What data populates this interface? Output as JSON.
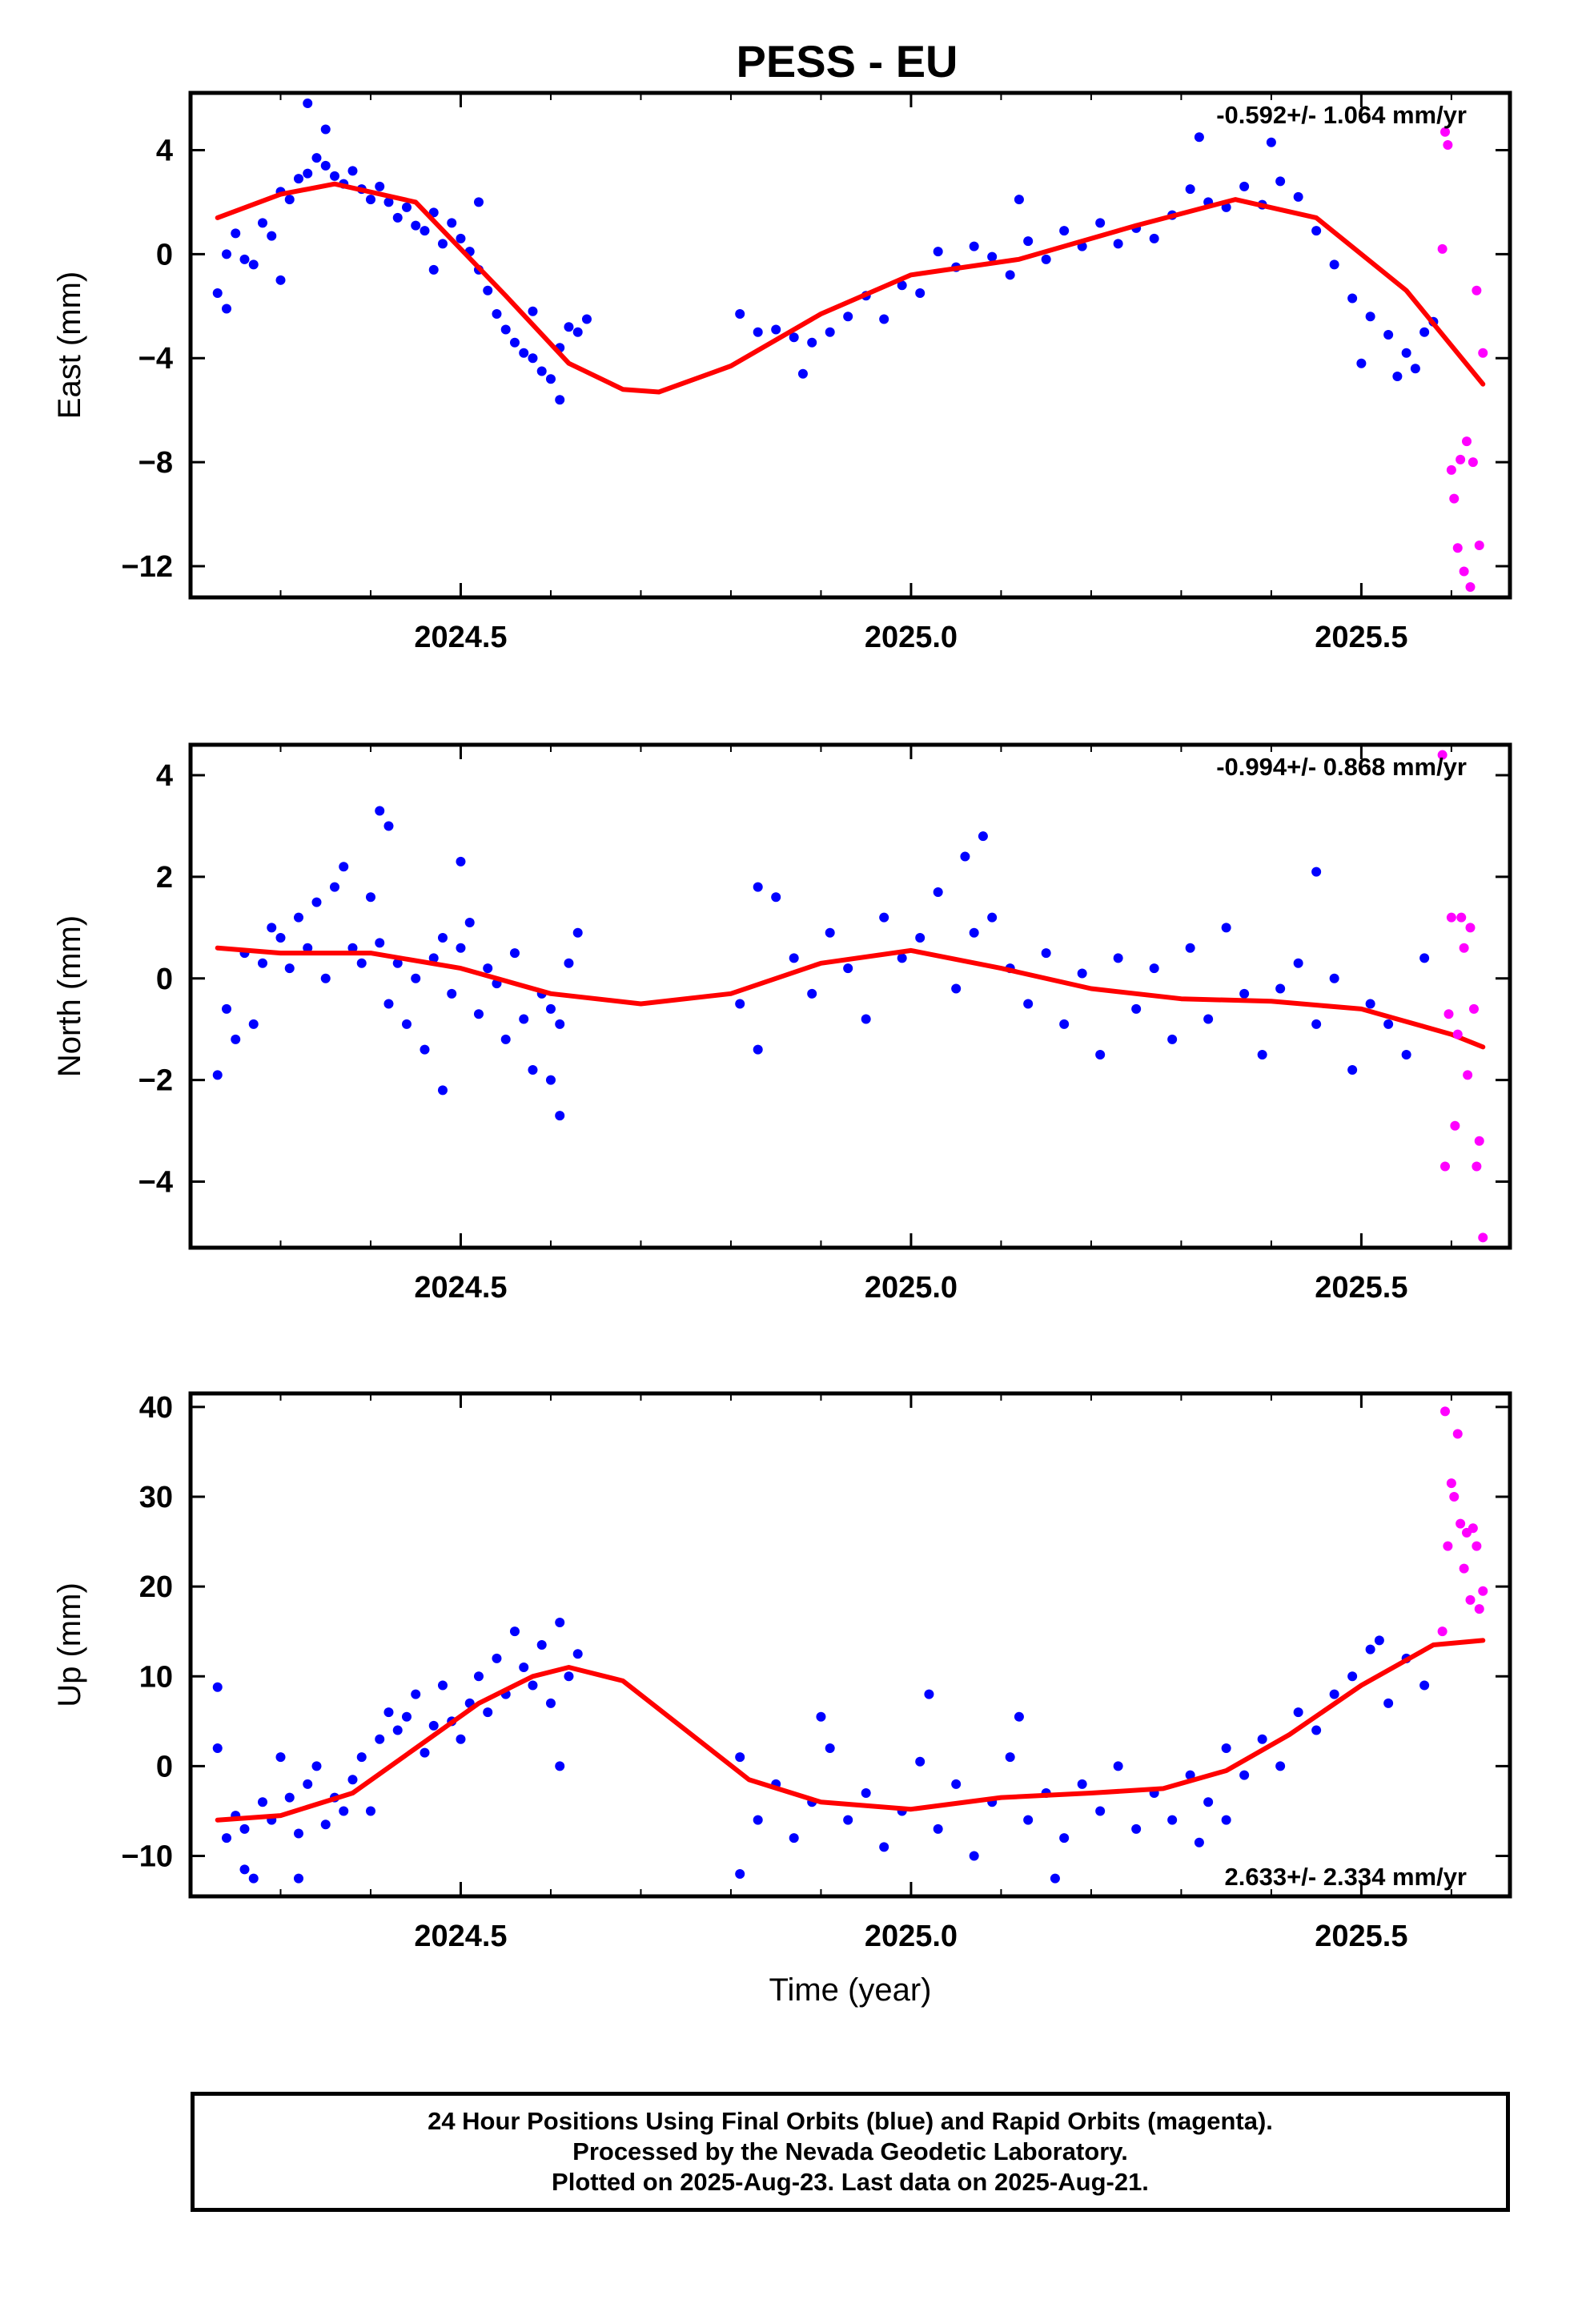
{
  "title": "PESS - EU",
  "colors": {
    "final": "#0000ff",
    "rapid": "#ff00ff",
    "fit": "#ff0000"
  },
  "footer": {
    "line1": "24 Hour Positions Using Final Orbits (blue) and Rapid Orbits (magenta).",
    "line2": "Processed by the Nevada Geodetic Laboratory.",
    "line3": "Plotted on 2025-Aug-23. Last data on 2025-Aug-21."
  },
  "chart_data": [
    {
      "type": "scatter",
      "ylabel": "East (mm)",
      "xlim": [
        2024.2,
        2025.665
      ],
      "ylim": [
        -13.2,
        6.2
      ],
      "xticks": [
        2024.5,
        2025.0,
        2025.5
      ],
      "xtick_labels": [
        "2024.5",
        "2025.0",
        "2025.5"
      ],
      "yticks": [
        4,
        0,
        -4,
        -8,
        -12
      ],
      "ytick_labels": [
        "4",
        "0",
        "−4",
        "−8",
        "−12"
      ],
      "rate": "-0.592+/- 1.064 mm/yr",
      "rate_position": "top-right",
      "series": [
        {
          "role": "fit",
          "kind": "line",
          "x": [
            2024.23,
            2024.3,
            2024.36,
            2024.45,
            2024.55,
            2024.62,
            2024.68,
            2024.72,
            2024.8,
            2024.9,
            2025.0,
            2025.12,
            2025.25,
            2025.36,
            2025.45,
            2025.55,
            2025.635
          ],
          "y": [
            1.4,
            2.3,
            2.7,
            2.0,
            -1.6,
            -4.2,
            -5.2,
            -5.3,
            -4.3,
            -2.3,
            -0.8,
            -0.2,
            1.1,
            2.1,
            1.4,
            -1.4,
            -5.0
          ]
        },
        {
          "role": "final",
          "kind": "points",
          "x": [
            2024.23,
            2024.24,
            2024.25,
            2024.26,
            2024.27,
            2024.28,
            2024.29,
            2024.3,
            2024.31,
            2024.32,
            2024.33,
            2024.34,
            2024.35,
            2024.36,
            2024.37,
            2024.38,
            2024.39,
            2024.4,
            2024.41,
            2024.42,
            2024.43,
            2024.44,
            2024.45,
            2024.46,
            2024.47,
            2024.48,
            2024.49,
            2024.5,
            2024.51,
            2024.52,
            2024.53,
            2024.54,
            2024.55,
            2024.56,
            2024.57,
            2024.58,
            2024.59,
            2024.6,
            2024.61,
            2024.62,
            2024.63,
            2024.64,
            2024.81,
            2024.83,
            2024.85,
            2024.87,
            2024.89,
            2024.91,
            2024.93,
            2024.95,
            2024.97,
            2024.99,
            2025.01,
            2025.03,
            2025.05,
            2025.07,
            2025.09,
            2025.11,
            2025.13,
            2025.15,
            2025.17,
            2025.19,
            2025.21,
            2025.23,
            2025.25,
            2025.27,
            2025.29,
            2025.31,
            2025.33,
            2025.35,
            2025.37,
            2025.39,
            2025.41,
            2025.43,
            2025.45,
            2025.47,
            2025.49,
            2025.51,
            2025.53,
            2025.55,
            2025.56,
            2025.57,
            2025.58,
            2024.33,
            2024.35,
            2024.47,
            2024.61,
            2025.32,
            2025.4,
            2024.24,
            2024.3,
            2024.52,
            2024.58,
            2024.88,
            2025.12,
            2025.5,
            2025.54
          ],
          "y": [
            -1.5,
            0.0,
            0.8,
            -0.2,
            -0.4,
            1.2,
            0.7,
            2.4,
            2.1,
            2.9,
            3.1,
            3.7,
            3.4,
            3.0,
            2.7,
            3.2,
            2.5,
            2.1,
            2.6,
            2.0,
            1.4,
            1.8,
            1.1,
            0.9,
            1.6,
            0.4,
            1.2,
            0.6,
            0.1,
            -0.6,
            -1.4,
            -2.3,
            -2.9,
            -3.4,
            -3.8,
            -4.0,
            -4.5,
            -4.8,
            -3.6,
            -2.8,
            -3.0,
            -2.5,
            -2.3,
            -3.0,
            -2.9,
            -3.2,
            -3.4,
            -3.0,
            -2.4,
            -1.6,
            -2.5,
            -1.2,
            -1.5,
            0.1,
            -0.5,
            0.3,
            -0.1,
            -0.8,
            0.5,
            -0.2,
            0.9,
            0.3,
            1.2,
            0.4,
            1.0,
            0.6,
            1.5,
            2.5,
            2.0,
            1.8,
            2.6,
            1.9,
            2.8,
            2.2,
            0.9,
            -0.4,
            -1.7,
            -2.4,
            -3.1,
            -3.8,
            -4.4,
            -3.0,
            -2.6,
            5.8,
            4.8,
            -0.6,
            -5.6,
            4.5,
            4.3,
            -2.1,
            -1.0,
            2.0,
            -2.2,
            -4.6,
            2.1,
            -4.2,
            -4.7
          ]
        },
        {
          "role": "rapid",
          "kind": "points",
          "x": [
            2025.593,
            2025.596,
            2025.6,
            2025.603,
            2025.607,
            2025.61,
            2025.614,
            2025.617,
            2025.621,
            2025.624,
            2025.628,
            2025.631,
            2025.635,
            2025.59
          ],
          "y": [
            4.7,
            4.2,
            -8.3,
            -9.4,
            -11.3,
            -7.9,
            -12.2,
            -7.2,
            -12.8,
            -8.0,
            -1.4,
            -11.2,
            -3.8,
            0.2
          ]
        }
      ]
    },
    {
      "type": "scatter",
      "ylabel": "North (mm)",
      "xlim": [
        2024.2,
        2025.665
      ],
      "ylim": [
        -5.3,
        4.6
      ],
      "xticks": [
        2024.5,
        2025.0,
        2025.5
      ],
      "xtick_labels": [
        "2024.5",
        "2025.0",
        "2025.5"
      ],
      "yticks": [
        4,
        2,
        0,
        -2,
        -4
      ],
      "ytick_labels": [
        "4",
        "2",
        "0",
        "−2",
        "−4"
      ],
      "rate": "-0.994+/- 0.868 mm/yr",
      "rate_position": "top-right",
      "series": [
        {
          "role": "fit",
          "kind": "line",
          "x": [
            2024.23,
            2024.3,
            2024.4,
            2024.5,
            2024.6,
            2024.7,
            2024.8,
            2024.9,
            2025.0,
            2025.1,
            2025.2,
            2025.3,
            2025.4,
            2025.5,
            2025.6,
            2025.635
          ],
          "y": [
            0.6,
            0.5,
            0.5,
            0.2,
            -0.3,
            -0.5,
            -0.3,
            0.3,
            0.55,
            0.2,
            -0.2,
            -0.4,
            -0.45,
            -0.6,
            -1.1,
            -1.35
          ]
        },
        {
          "role": "final",
          "kind": "points",
          "x": [
            2024.23,
            2024.24,
            2024.25,
            2024.26,
            2024.27,
            2024.28,
            2024.29,
            2024.3,
            2024.31,
            2024.32,
            2024.33,
            2024.34,
            2024.35,
            2024.36,
            2024.37,
            2024.38,
            2024.39,
            2024.4,
            2024.41,
            2024.42,
            2024.43,
            2024.44,
            2024.45,
            2024.46,
            2024.47,
            2024.48,
            2024.49,
            2024.5,
            2024.51,
            2024.52,
            2024.53,
            2024.54,
            2024.55,
            2024.56,
            2024.57,
            2024.58,
            2024.59,
            2024.6,
            2024.61,
            2024.62,
            2024.63,
            2024.81,
            2024.83,
            2024.85,
            2024.87,
            2024.89,
            2024.91,
            2024.93,
            2024.95,
            2024.97,
            2024.99,
            2025.01,
            2025.03,
            2025.05,
            2025.07,
            2025.09,
            2025.11,
            2025.13,
            2025.15,
            2025.17,
            2025.19,
            2025.21,
            2025.23,
            2025.25,
            2025.27,
            2025.29,
            2025.31,
            2025.33,
            2025.35,
            2025.37,
            2025.39,
            2025.41,
            2025.43,
            2025.45,
            2025.47,
            2025.49,
            2025.51,
            2025.53,
            2025.55,
            2025.57,
            2024.41,
            2024.42,
            2024.5,
            2024.61,
            2025.08,
            2025.45,
            2024.48,
            2024.6,
            2024.83,
            2025.06
          ],
          "y": [
            -1.9,
            -0.6,
            -1.2,
            0.5,
            -0.9,
            0.3,
            1.0,
            0.8,
            0.2,
            1.2,
            0.6,
            1.5,
            0.0,
            1.8,
            2.2,
            0.6,
            0.3,
            1.6,
            0.7,
            -0.5,
            0.3,
            -0.9,
            0.0,
            -1.4,
            0.4,
            0.8,
            -0.3,
            0.6,
            1.1,
            -0.7,
            0.2,
            -0.1,
            -1.2,
            0.5,
            -0.8,
            -1.8,
            -0.3,
            -0.6,
            -0.9,
            0.3,
            0.9,
            -0.5,
            -1.4,
            1.6,
            0.4,
            -0.3,
            0.9,
            0.2,
            -0.8,
            1.2,
            0.4,
            0.8,
            1.7,
            -0.2,
            0.9,
            1.2,
            0.2,
            -0.5,
            0.5,
            -0.9,
            0.1,
            -1.5,
            0.4,
            -0.6,
            0.2,
            -1.2,
            0.6,
            -0.8,
            1.0,
            -0.3,
            -1.5,
            -0.2,
            0.3,
            -0.9,
            0.0,
            -1.8,
            -0.5,
            -0.9,
            -1.5,
            0.4,
            3.3,
            3.0,
            2.3,
            -2.7,
            2.8,
            2.1,
            -2.2,
            -2.0,
            1.8,
            2.4
          ]
        },
        {
          "role": "rapid",
          "kind": "points",
          "x": [
            2025.59,
            2025.593,
            2025.597,
            2025.6,
            2025.604,
            2025.607,
            2025.611,
            2025.614,
            2025.618,
            2025.621,
            2025.625,
            2025.628,
            2025.631,
            2025.635
          ],
          "y": [
            4.4,
            -3.7,
            -0.7,
            1.2,
            -2.9,
            -1.1,
            1.2,
            0.6,
            -1.9,
            1.0,
            -0.6,
            -3.7,
            -3.2,
            -5.1
          ]
        }
      ]
    },
    {
      "type": "scatter",
      "ylabel": "Up (mm)",
      "xlabel": "Time (year)",
      "xlim": [
        2024.2,
        2025.665
      ],
      "ylim": [
        -14.5,
        41.5
      ],
      "xticks": [
        2024.5,
        2025.0,
        2025.5
      ],
      "xtick_labels": [
        "2024.5",
        "2025.0",
        "2025.5"
      ],
      "yticks": [
        40,
        30,
        20,
        10,
        0,
        -10
      ],
      "ytick_labels": [
        "40",
        "30",
        "20",
        "10",
        "0",
        "−10"
      ],
      "rate": "2.633+/- 2.334 mm/yr",
      "rate_position": "bottom-right",
      "series": [
        {
          "role": "fit",
          "kind": "line",
          "x": [
            2024.23,
            2024.3,
            2024.38,
            2024.45,
            2024.52,
            2024.58,
            2024.62,
            2024.68,
            2024.75,
            2024.82,
            2024.9,
            2025.0,
            2025.1,
            2025.2,
            2025.28,
            2025.35,
            2025.42,
            2025.5,
            2025.58,
            2025.635
          ],
          "y": [
            -6.0,
            -5.5,
            -3.0,
            2.0,
            7.0,
            10.0,
            11.0,
            9.5,
            4.0,
            -1.5,
            -4.0,
            -4.8,
            -3.5,
            -3.0,
            -2.5,
            -0.5,
            3.5,
            9.0,
            13.5,
            14.0
          ]
        },
        {
          "role": "final",
          "kind": "points",
          "x": [
            2024.23,
            2024.24,
            2024.25,
            2024.26,
            2024.27,
            2024.28,
            2024.29,
            2024.3,
            2024.31,
            2024.32,
            2024.33,
            2024.34,
            2024.35,
            2024.36,
            2024.37,
            2024.38,
            2024.39,
            2024.4,
            2024.41,
            2024.42,
            2024.43,
            2024.44,
            2024.45,
            2024.46,
            2024.47,
            2024.48,
            2024.49,
            2024.5,
            2024.51,
            2024.52,
            2024.53,
            2024.54,
            2024.55,
            2024.56,
            2024.57,
            2024.58,
            2024.59,
            2024.6,
            2024.61,
            2024.62,
            2024.63,
            2024.81,
            2024.83,
            2024.85,
            2024.87,
            2024.89,
            2024.91,
            2024.93,
            2024.95,
            2024.97,
            2024.99,
            2025.01,
            2025.03,
            2025.05,
            2025.07,
            2025.09,
            2025.11,
            2025.13,
            2025.15,
            2025.17,
            2025.19,
            2025.21,
            2025.23,
            2025.25,
            2025.27,
            2025.29,
            2025.31,
            2025.33,
            2025.35,
            2025.37,
            2025.39,
            2025.41,
            2025.43,
            2025.45,
            2025.47,
            2025.49,
            2025.51,
            2025.53,
            2025.55,
            2025.57,
            2024.23,
            2024.26,
            2024.32,
            2024.61,
            2024.81,
            2024.9,
            2025.02,
            2025.12,
            2025.16,
            2025.32,
            2025.35,
            2025.52
          ],
          "y": [
            2.0,
            -8.0,
            -5.5,
            -7.0,
            -12.5,
            -4.0,
            -6.0,
            1.0,
            -3.5,
            -7.5,
            -2.0,
            0.0,
            -6.5,
            -3.5,
            -5.0,
            -1.5,
            1.0,
            -5.0,
            3.0,
            6.0,
            4.0,
            5.5,
            8.0,
            1.5,
            4.5,
            9.0,
            5.0,
            3.0,
            7.0,
            10.0,
            6.0,
            12.0,
            8.0,
            15.0,
            11.0,
            9.0,
            13.5,
            7.0,
            16.0,
            10.0,
            12.5,
            1.0,
            -6.0,
            -2.0,
            -8.0,
            -4.0,
            2.0,
            -6.0,
            -3.0,
            -9.0,
            -5.0,
            0.5,
            -7.0,
            -2.0,
            -10.0,
            -4.0,
            1.0,
            -6.0,
            -3.0,
            -8.0,
            -2.0,
            -5.0,
            0.0,
            -7.0,
            -3.0,
            -6.0,
            -1.0,
            -4.0,
            2.0,
            -1.0,
            3.0,
            0.0,
            6.0,
            4.0,
            8.0,
            10.0,
            13.0,
            7.0,
            12.0,
            9.0,
            8.8,
            -11.5,
            -12.5,
            0.0,
            -12.0,
            5.5,
            8.0,
            5.5,
            -12.5,
            -8.5,
            -6.0,
            14.0
          ]
        },
        {
          "role": "rapid",
          "kind": "points",
          "x": [
            2025.59,
            2025.593,
            2025.596,
            2025.6,
            2025.603,
            2025.607,
            2025.61,
            2025.614,
            2025.617,
            2025.621,
            2025.624,
            2025.628,
            2025.631,
            2025.635
          ],
          "y": [
            15.0,
            39.5,
            24.5,
            31.5,
            30.0,
            37.0,
            27.0,
            22.0,
            26.0,
            18.5,
            26.5,
            24.5,
            17.5,
            19.5
          ]
        }
      ]
    }
  ]
}
